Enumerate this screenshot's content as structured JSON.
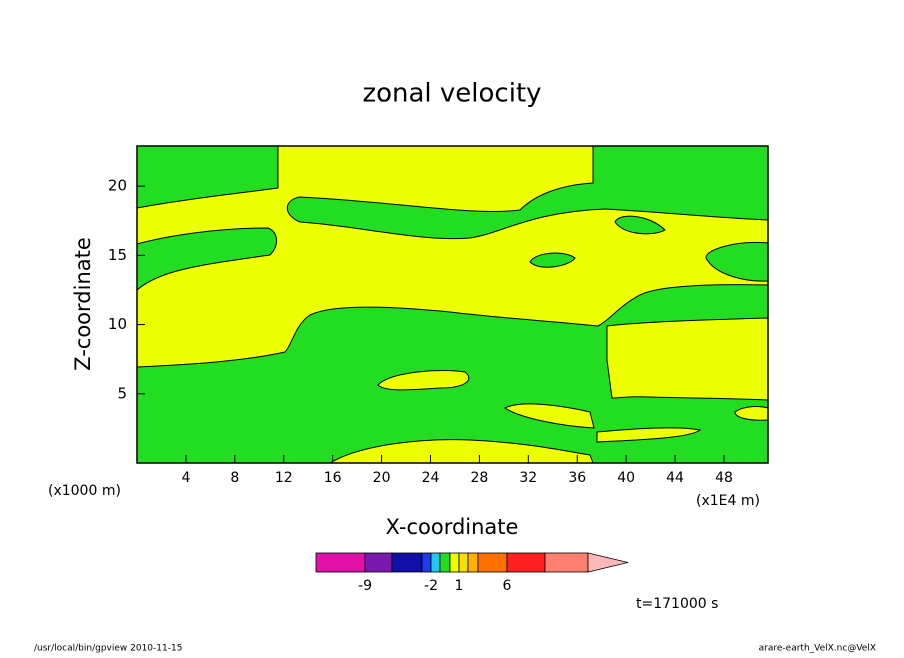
{
  "chart_data": {
    "type": "contour",
    "title": "zonal velocity",
    "x_label": "X-coordinate",
    "y_label": "Z-coordinate",
    "x_unit": "(x1E4 m)",
    "y_unit": "(x1000 m)",
    "xlim": [
      0,
      51.6
    ],
    "ylim": [
      0,
      22.9
    ],
    "xticks": [
      4,
      8,
      12,
      16,
      20,
      24,
      28,
      32,
      36,
      40,
      44,
      48
    ],
    "yticks": [
      5,
      10,
      15,
      20
    ],
    "colorbar": {
      "levels": [
        -9,
        -6,
        -3,
        -2,
        -1,
        0,
        1,
        2,
        3,
        6,
        9,
        12
      ],
      "colors": [
        "#e010a8",
        "#7a18b0",
        "#1010a8",
        "#1e3ce8",
        "#22c8f0",
        "#22dd22",
        "#eeff00",
        "#f8e000",
        "#ffb000",
        "#ff7000",
        "#ff2020",
        "#ff8070",
        "#ffb8b8"
      ],
      "ticks": [
        -9,
        -2,
        1,
        6
      ]
    },
    "time_label": "t=171000 s",
    "footer_left": "/usr/local/bin/gpview  2010-11-15",
    "footer_right": "arare-earth_VelX.nc@VelX"
  }
}
